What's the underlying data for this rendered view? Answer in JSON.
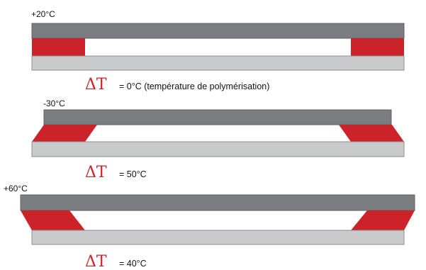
{
  "colors": {
    "top_plate": "#7b7d80",
    "top_plate_edge": "#5e6063",
    "bottom_plate": "#c9cacc",
    "bottom_plate_edge": "#8c8e91",
    "adhesive": "#cc2229",
    "delta_symbol": "#cc2229"
  },
  "stages": [
    {
      "temperature": "+20°C",
      "delta_symbol": "ΔT",
      "delta_text": "= 0°C (température de polymérisation)"
    },
    {
      "temperature": "-30°C",
      "delta_symbol": "ΔT",
      "delta_text": "= 50°C"
    },
    {
      "temperature": "+60°C",
      "delta_symbol": "ΔT",
      "delta_text": "= 40°C"
    }
  ]
}
